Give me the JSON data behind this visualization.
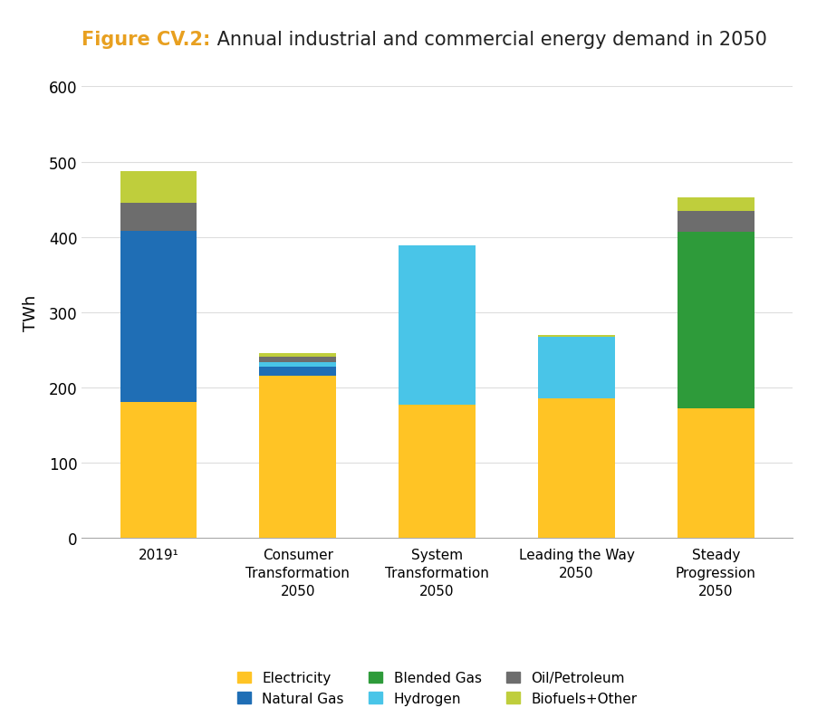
{
  "title_bold": "Figure CV.2:",
  "title_normal": " Annual industrial and commercial energy demand in 2050",
  "ylabel": "TWh",
  "ylim": [
    0,
    600
  ],
  "yticks": [
    0,
    100,
    200,
    300,
    400,
    500,
    600
  ],
  "categories": [
    "2019¹",
    "Consumer\nTransformation\n2050",
    "System\nTransformation\n2050",
    "Leading the Way\n2050",
    "Steady\nProgression\n2050"
  ],
  "series": {
    "Electricity": [
      180,
      215,
      177,
      185,
      172
    ],
    "Natural Gas": [
      228,
      13,
      0,
      0,
      0
    ],
    "Hydrogen": [
      0,
      5,
      212,
      82,
      0
    ],
    "Blended Gas": [
      0,
      0,
      0,
      0,
      235
    ],
    "Oil/Petroleum": [
      37,
      8,
      0,
      0,
      28
    ],
    "Biofuels+Other": [
      43,
      4,
      0,
      2,
      18
    ]
  },
  "colors": {
    "Electricity": "#FFC425",
    "Natural Gas": "#1F6EB5",
    "Hydrogen": "#49C5E8",
    "Blended Gas": "#2E9B3A",
    "Oil/Petroleum": "#6D6D6D",
    "Biofuels+Other": "#BFCE3C"
  },
  "bar_width": 0.55,
  "title_color_bold": "#E8A020",
  "title_color_normal": "#222222",
  "background_color": "#FFFFFF",
  "grid_color": "#DDDDDD",
  "stack_order": [
    "Electricity",
    "Natural Gas",
    "Hydrogen",
    "Blended Gas",
    "Oil/Petroleum",
    "Biofuels+Other"
  ],
  "legend_order": [
    "Electricity",
    "Natural Gas",
    "Blended Gas",
    "Hydrogen",
    "Oil/Petroleum",
    "Biofuels+Other"
  ]
}
